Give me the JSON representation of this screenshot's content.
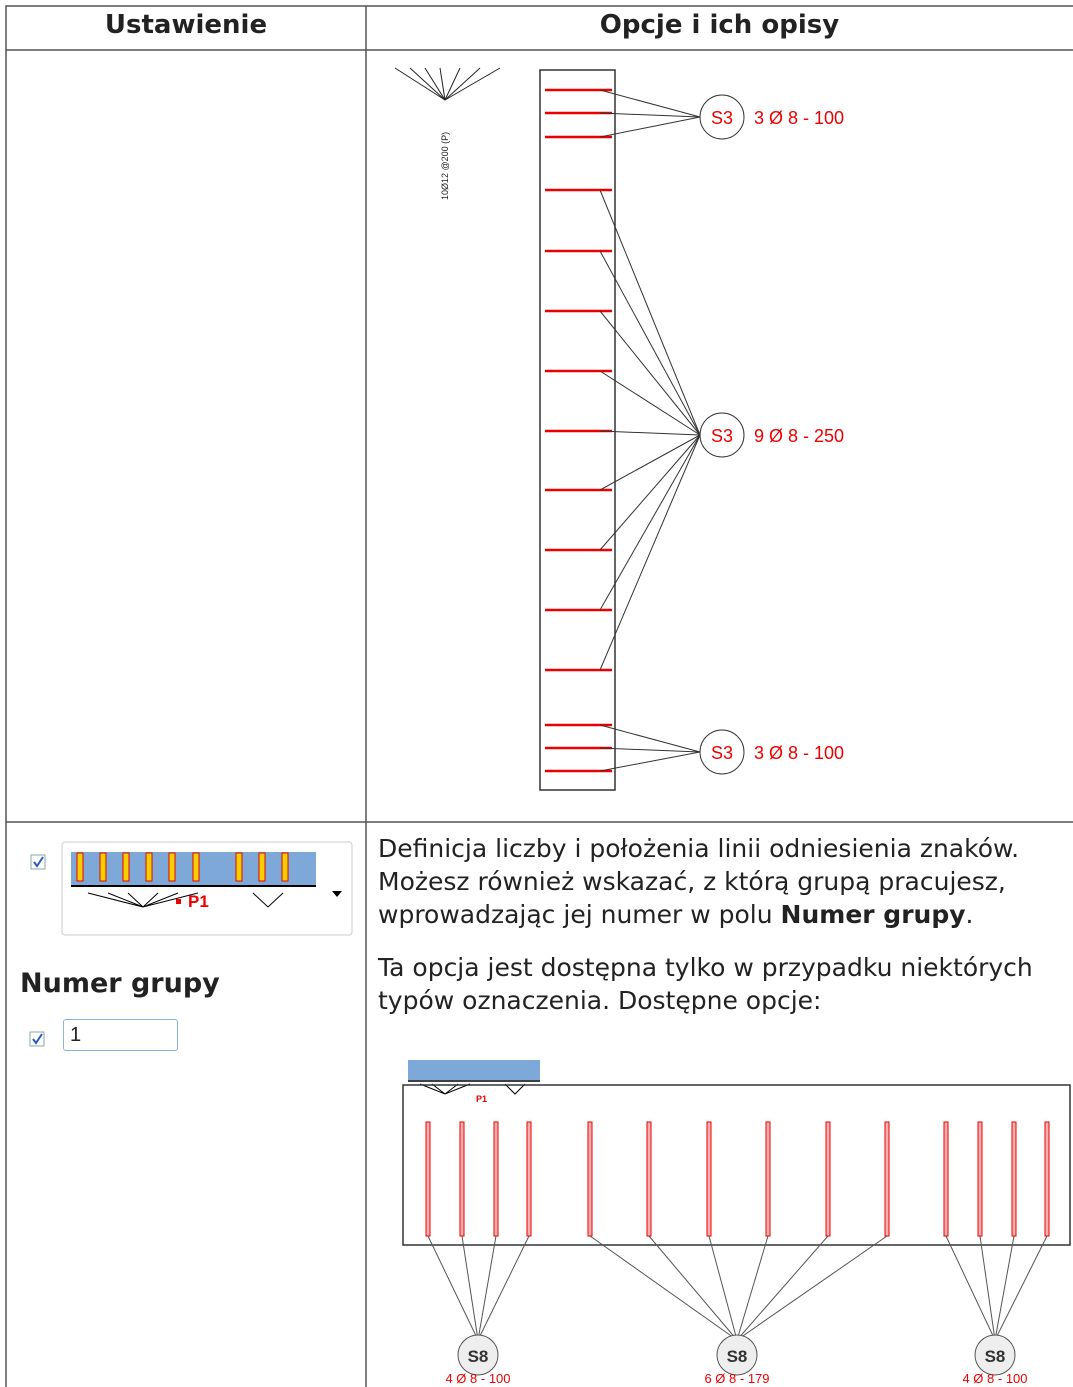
{
  "table": {
    "headers": [
      "Ustawienie",
      "Opcje i ich opisy"
    ],
    "rows": [
      {
        "example": {
          "rotated_label": "10Ø12 @200 (P)",
          "tags": [
            {
              "mark": "S3",
              "text": "3 Ø 8 - 100"
            },
            {
              "mark": "S3",
              "text": "9 Ø 8 - 250"
            },
            {
              "mark": "S3",
              "text": "3 Ø 8 - 100"
            }
          ]
        }
      },
      {
        "setting": {
          "icon_label": "P1",
          "title": "Numer grupy",
          "input_value": "1"
        },
        "description": {
          "paragraph1": [
            "Definicja liczby i położenia linii odniesienia znaków. Możesz również wskazać, z którą grupą pracujesz, wprowadzając jej numer w polu ",
            "Numer grupy",
            "."
          ],
          "paragraph2": "Ta opcja jest dostępna tylko w przypadku niektórych typów oznaczenia. Dostępne opcje:",
          "example": {
            "icon_label": "P1",
            "tags": [
              {
                "mark": "S8",
                "text": "4 Ø 8 - 100"
              },
              {
                "mark": "S8",
                "text": "6 Ø 8 - 179"
              },
              {
                "mark": "S8",
                "text": "4 Ø 8 - 100"
              }
            ]
          }
        }
      }
    ]
  }
}
